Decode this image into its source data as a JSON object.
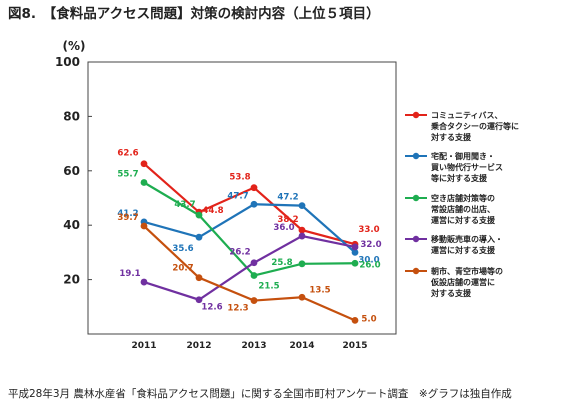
{
  "title": "図8.　【食料品アクセス問題】対策の検討内容（上位５項目）",
  "caption": "平成28年3月 農林水産省「食料品アクセス問題」に関する全国市町村アンケート調査　※グラフは独自作成",
  "chart_data": {
    "type": "line",
    "title": "図8.　【食料品アクセス問題】対策の検討内容（上位５項目）",
    "unit_label": "(%)",
    "x": [
      "2011",
      "2012",
      "2013",
      "2014",
      "2015"
    ],
    "y_ticks": [
      "20",
      "40",
      "60",
      "80",
      "100"
    ],
    "ylim": [
      0,
      100
    ],
    "grid": false,
    "legend_position": "right",
    "series": [
      {
        "name": "コミュニティバス、乗合タクシーの運行等に対する支援",
        "legend_lines": [
          "コミュニティバス、",
          "乗合タクシーの運行等に",
          "対する支援"
        ],
        "color": "#e2231a",
        "values": [
          62.6,
          44.8,
          53.8,
          38.2,
          33.0
        ],
        "labels": [
          "62.6",
          "44.8",
          "53.8",
          "38.2",
          "33.0"
        ]
      },
      {
        "name": "宅配・御用聞き・買い物代行サービス等に対する支援",
        "legend_lines": [
          "宅配・御用聞き・",
          "買い物代行サービス",
          "等に対する支援"
        ],
        "color": "#1f74b8",
        "values": [
          41.2,
          35.6,
          47.7,
          47.2,
          30.0
        ],
        "labels": [
          "41.2",
          "35.6",
          "47.7",
          "47.2",
          "30.0"
        ]
      },
      {
        "name": "空き店舗対策等の常設店舗の出店、運営に対する支援",
        "legend_lines": [
          "空き店舗対策等の",
          "常設店舗の出店、",
          "運営に対する支援"
        ],
        "color": "#1ead50",
        "values": [
          55.7,
          43.7,
          21.5,
          25.8,
          26.0
        ],
        "labels": [
          "55.7",
          "43.7",
          "21.5",
          "25.8",
          "26.0"
        ]
      },
      {
        "name": "移動販売車の導入・運営に対する支援",
        "legend_lines": [
          "移動販売車の導入・",
          "運営に対する支援"
        ],
        "color": "#7030a0",
        "values": [
          19.1,
          12.6,
          26.2,
          36.0,
          32.0
        ],
        "labels": [
          "19.1",
          "12.6",
          "26.2",
          "36.0",
          "32.0"
        ]
      },
      {
        "name": "朝市、青空市場等の仮設店舗の運営に対する支援",
        "legend_lines": [
          "朝市、青空市場等の",
          "仮設店舗の運営に",
          "対する支援"
        ],
        "color": "#c5500e",
        "values": [
          39.7,
          20.7,
          12.3,
          13.5,
          5.0
        ],
        "labels": [
          "39.7",
          "20.7",
          "12.3",
          "13.5",
          "5.0"
        ]
      }
    ]
  }
}
